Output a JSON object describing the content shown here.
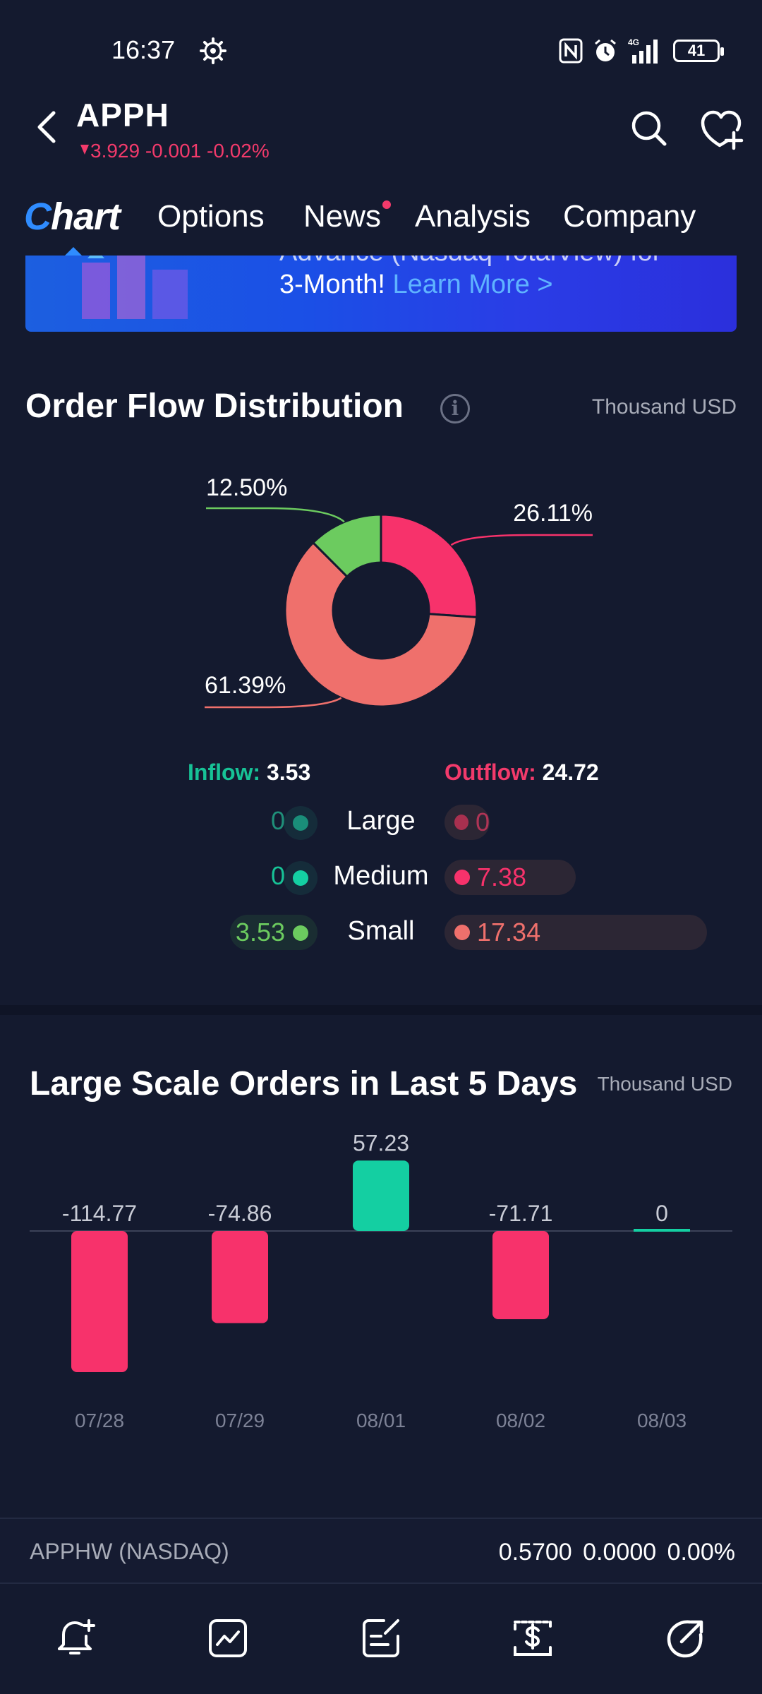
{
  "status_bar": {
    "time": "16:37",
    "battery": "41",
    "network": "4G"
  },
  "header": {
    "ticker": "APPH",
    "quote": "3.929 -0.001 -0.02%"
  },
  "tabs": {
    "chart": "hart",
    "chart_c": "C",
    "options": "Options",
    "news": "News",
    "analysis": "Analysis",
    "company": "Company"
  },
  "banner": {
    "line1": "Advance (Nasdaq TotalView) for",
    "line2": "3-Month! ",
    "link": "Learn More >"
  },
  "order_flow": {
    "title": "Order Flow Distribution",
    "info_glyph": "i",
    "unit": "Thousand USD",
    "inflow_label": "Inflow:",
    "inflow_value": "3.53",
    "outflow_label": "Outflow:",
    "outflow_value": "24.72",
    "rows": [
      {
        "label": "Large",
        "in": "0",
        "out": "0"
      },
      {
        "label": "Medium",
        "in": "0",
        "out": "7.38"
      },
      {
        "label": "Small",
        "in": "3.53",
        "out": "17.34"
      }
    ]
  },
  "chart_data": [
    {
      "type": "pie",
      "title": "Order Flow Distribution",
      "categories": [
        "Inflow Small",
        "Outflow Medium",
        "Outflow Small"
      ],
      "values": [
        12.5,
        26.11,
        61.39
      ],
      "labels": [
        "12.50%",
        "26.11%",
        "61.39%"
      ],
      "colors": [
        "#6ccb5f",
        "#f7326b",
        "#ef706c"
      ],
      "donut": true
    },
    {
      "type": "bar",
      "title": "Large Scale Orders in Last 5 Days",
      "unit": "Thousand USD",
      "categories": [
        "07/28",
        "07/29",
        "08/01",
        "08/02",
        "08/03"
      ],
      "values": [
        -114.77,
        -74.86,
        57.23,
        -71.71,
        0
      ],
      "labels": [
        "-114.77",
        "-74.86",
        "57.23",
        "-71.71",
        "0"
      ],
      "positive_color": "#14cfa2",
      "negative_color": "#f7326b",
      "ylim": [
        -114.77,
        57.23
      ]
    }
  ],
  "large_scale": {
    "title": "Large Scale Orders in Last 5 Days",
    "unit": "Thousand USD"
  },
  "bottom_quote": {
    "name": "APPHW (NASDAQ)",
    "values": "0.5700  0.0000  0.00%"
  },
  "colors": {
    "background": "#141a2f",
    "accent_blue": "#2f8cff",
    "up_green": "#17c296",
    "down_red": "#f23a6b"
  },
  "bottom_nav": {
    "icons": [
      "bell-plus-icon",
      "trend-chart-icon",
      "note-edit-icon",
      "trade-dollar-icon",
      "share-icon"
    ]
  }
}
